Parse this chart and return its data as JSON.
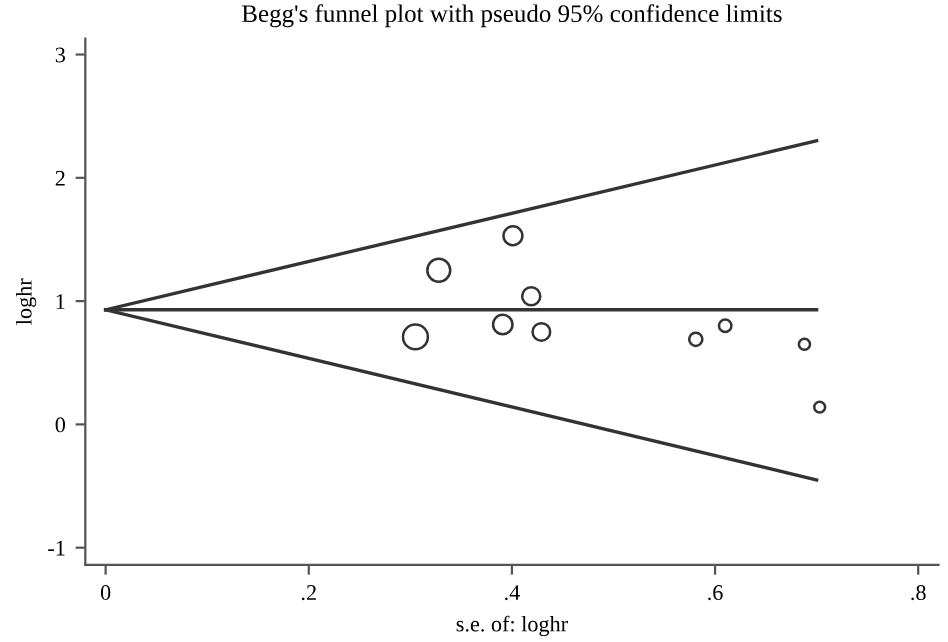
{
  "chart_data": {
    "type": "bubble",
    "title": "Begg's funnel plot with pseudo 95% confidence limits",
    "xlabel": "s.e. of: loghr",
    "ylabel": "loghr",
    "xlim": [
      -0.02,
      0.82
    ],
    "ylim": [
      -1.14,
      3.13
    ],
    "xticks": [
      {
        "value": 0,
        "label": "0"
      },
      {
        "value": 0.2,
        "label": ".2"
      },
      {
        "value": 0.4,
        "label": ".4"
      },
      {
        "value": 0.6,
        "label": ".6"
      },
      {
        "value": 0.8,
        "label": ".8"
      }
    ],
    "yticks": [
      -1,
      0,
      1,
      2,
      3
    ],
    "grid": false,
    "legend": false,
    "series": [
      {
        "color": "#333333",
        "x": [
          0.305,
          0.328,
          0.401,
          0.419,
          0.391,
          0.429,
          0.581,
          0.61,
          0.688,
          0.703
        ],
        "values": [
          0.71,
          1.25,
          1.53,
          1.04,
          0.81,
          0.75,
          0.69,
          0.8,
          0.65,
          0.14
        ],
        "sizes": [
          1,
          0.85,
          0.58,
          0.53,
          0.61,
          0.5,
          0.28,
          0.25,
          0.2,
          0.19
        ]
      },
      {
        "type": "line",
        "color": "#333333",
        "x": [
          0,
          0.7
        ],
        "values": [
          0.93,
          2.3
        ]
      },
      {
        "type": "line",
        "color": "#333333",
        "x": [
          0,
          0.7
        ],
        "values": [
          0.93,
          0.93
        ]
      },
      {
        "type": "line",
        "color": "#333333",
        "x": [
          0,
          0.7
        ],
        "values": [
          0.93,
          -0.45
        ]
      }
    ]
  }
}
